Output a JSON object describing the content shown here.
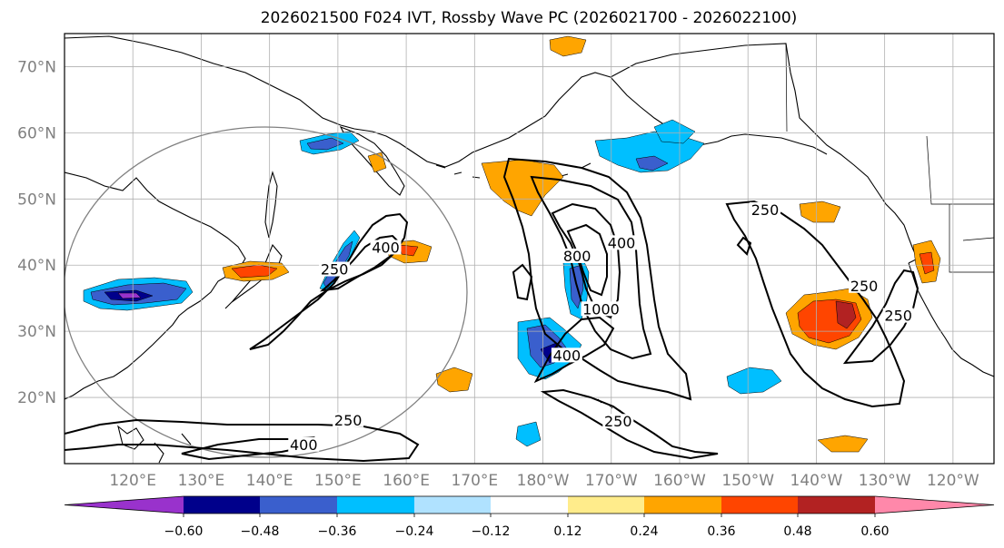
{
  "title": "2026021500 F024 IVT, Rossby Wave PC (2026021700 - 2026022100)",
  "map": {
    "lon_range_east": [
      110,
      246
    ],
    "lat_range": [
      10,
      75
    ],
    "lat_ticks": [
      {
        "value": 70,
        "label": "70°N"
      },
      {
        "value": 60,
        "label": "60°N"
      },
      {
        "value": 50,
        "label": "50°N"
      },
      {
        "value": 40,
        "label": "40°N"
      },
      {
        "value": 30,
        "label": "30°N"
      },
      {
        "value": 20,
        "label": "20°N"
      }
    ],
    "lon_ticks": [
      {
        "value": 120,
        "label": "120°E"
      },
      {
        "value": 130,
        "label": "130°E"
      },
      {
        "value": 140,
        "label": "140°E"
      },
      {
        "value": 150,
        "label": "150°E"
      },
      {
        "value": 160,
        "label": "160°E"
      },
      {
        "value": 170,
        "label": "170°E"
      },
      {
        "value": 180,
        "label": "180°W"
      },
      {
        "value": 190,
        "label": "170°W"
      },
      {
        "value": 200,
        "label": "160°W"
      },
      {
        "value": 210,
        "label": "150°W"
      },
      {
        "value": 220,
        "label": "140°W"
      },
      {
        "value": 230,
        "label": "130°W"
      },
      {
        "value": 240,
        "label": "120°W"
      }
    ],
    "ivt_contour_labels": [
      {
        "text": "250",
        "lon": 149.5,
        "lat": 39
      },
      {
        "text": "400",
        "lon": 157,
        "lat": 42.3
      },
      {
        "text": "800",
        "lon": 185,
        "lat": 41
      },
      {
        "text": "400",
        "lon": 191.5,
        "lat": 43
      },
      {
        "text": "1000",
        "lon": 188.5,
        "lat": 33
      },
      {
        "text": "400",
        "lon": 183.5,
        "lat": 26
      },
      {
        "text": "250",
        "lon": 191,
        "lat": 16
      },
      {
        "text": "250",
        "lon": 212.5,
        "lat": 48
      },
      {
        "text": "250",
        "lon": 227,
        "lat": 36.5
      },
      {
        "text": "250",
        "lon": 232,
        "lat": 32
      },
      {
        "text": "250",
        "lon": 151.5,
        "lat": 16.2
      },
      {
        "text": "400",
        "lon": 145,
        "lat": 12.5
      }
    ]
  },
  "colorbar": {
    "colors": [
      "#9932CC",
      "#00008B",
      "#3A5FCD",
      "#00BFFF",
      "#B0E2FF",
      "#FFFFFF",
      "#FFEC8B",
      "#FFA500",
      "#FF4500",
      "#B22222",
      "#FF88AA"
    ],
    "tick_labels": [
      "−0.60",
      "−0.48",
      "−0.36",
      "−0.24",
      "−0.12",
      "0.12",
      "0.24",
      "0.36",
      "0.48",
      "0.60"
    ]
  },
  "colors": {
    "land_outline": "#000000",
    "grid": "#b0b0b0",
    "circle": "#808080",
    "axis_text": "#808080"
  }
}
